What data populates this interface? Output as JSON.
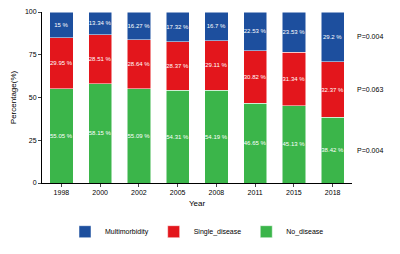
{
  "chart_data": {
    "type": "bar",
    "stacked": true,
    "data_labels": true,
    "x_label": "Year",
    "y_label": "Percentage(%)",
    "categories": [
      "1998",
      "2000",
      "2002",
      "2005",
      "2008",
      "2011",
      "2015",
      "2018"
    ],
    "ylim": [
      0,
      100
    ],
    "yticks": [
      0,
      25,
      50,
      75,
      100
    ],
    "grid": false,
    "legend": "bottom",
    "series": [
      {
        "name": "No_disease",
        "color": "#3bb54a",
        "p_value": "P=0.004",
        "values": [
          55.05,
          58.15,
          55.09,
          54.31,
          54.19,
          46.65,
          45.13,
          38.42
        ],
        "value_labels": [
          "55.05 %",
          "58.15 %",
          "55.09 %",
          "54.31 %",
          "54.19 %",
          "46.65 %",
          "45.13 %",
          "38.42 %"
        ]
      },
      {
        "name": "Single_disease",
        "color": "#e3161c",
        "p_value": "P=0.063",
        "values": [
          29.95,
          28.51,
          28.64,
          28.37,
          29.11,
          30.82,
          31.34,
          32.37
        ],
        "value_labels": [
          "29.95 %",
          "28.51 %",
          "28.64 %",
          "28.37 %",
          "29.11 %",
          "30.82 %",
          "31.34 %",
          "32.37 %"
        ]
      },
      {
        "name": "Multimorbidity",
        "color": "#1d4f9e",
        "p_value": "P=0.004",
        "values": [
          15,
          13.34,
          16.27,
          17.32,
          16.7,
          22.53,
          23.53,
          29.2
        ],
        "value_labels": [
          "15 %",
          "13.34 %",
          "16.27 %",
          "17.32 %",
          "16.7 %",
          "22.53 %",
          "23.53 %",
          "29.2 %"
        ]
      }
    ]
  }
}
